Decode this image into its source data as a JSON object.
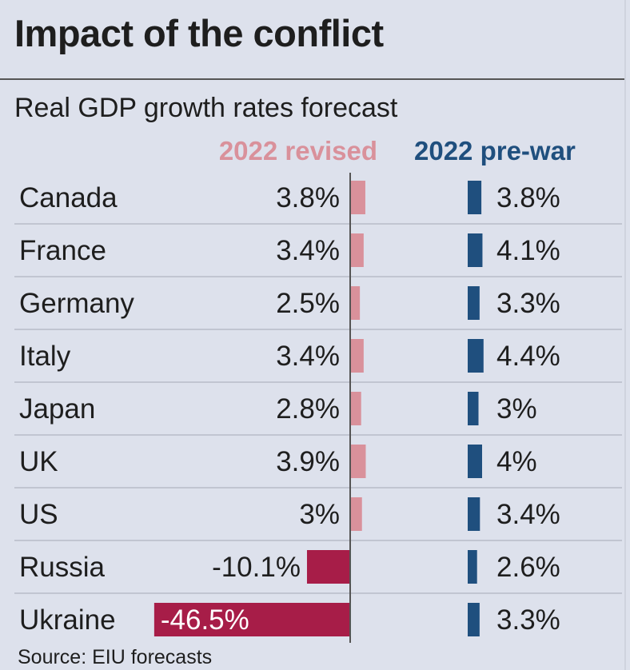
{
  "title": "Impact of the conflict",
  "subtitle": "Real GDP growth rates forecast",
  "source": "Source: EIU forecasts",
  "colors": {
    "revised_positive": "#d9919b",
    "revised_negative": "#a71d48",
    "prewar": "#1f4f7e",
    "row_divider": "#b8bcc8",
    "axis": "#555555"
  },
  "chart_data": {
    "type": "bar",
    "categories": [
      "Canada",
      "France",
      "Germany",
      "Italy",
      "Japan",
      "UK",
      "US",
      "Russia",
      "Ukraine"
    ],
    "series": [
      {
        "name": "2022 revised",
        "values": [
          3.8,
          3.4,
          2.5,
          3.4,
          2.8,
          3.9,
          3.0,
          -10.1,
          -46.5
        ],
        "labels": [
          "3.8%",
          "3.4%",
          "2.5%",
          "3.4%",
          "2.8%",
          "3.9%",
          "3%",
          "-10.1%",
          "-46.5%"
        ]
      },
      {
        "name": "2022 pre-war",
        "values": [
          3.8,
          4.1,
          3.3,
          4.4,
          3.0,
          4.0,
          3.4,
          2.6,
          3.3
        ],
        "labels": [
          "3.8%",
          "4.1%",
          "3.3%",
          "4.4%",
          "3%",
          "4%",
          "3.4%",
          "2.6%",
          "3.3%"
        ]
      }
    ],
    "grid": false,
    "legend": "top"
  }
}
